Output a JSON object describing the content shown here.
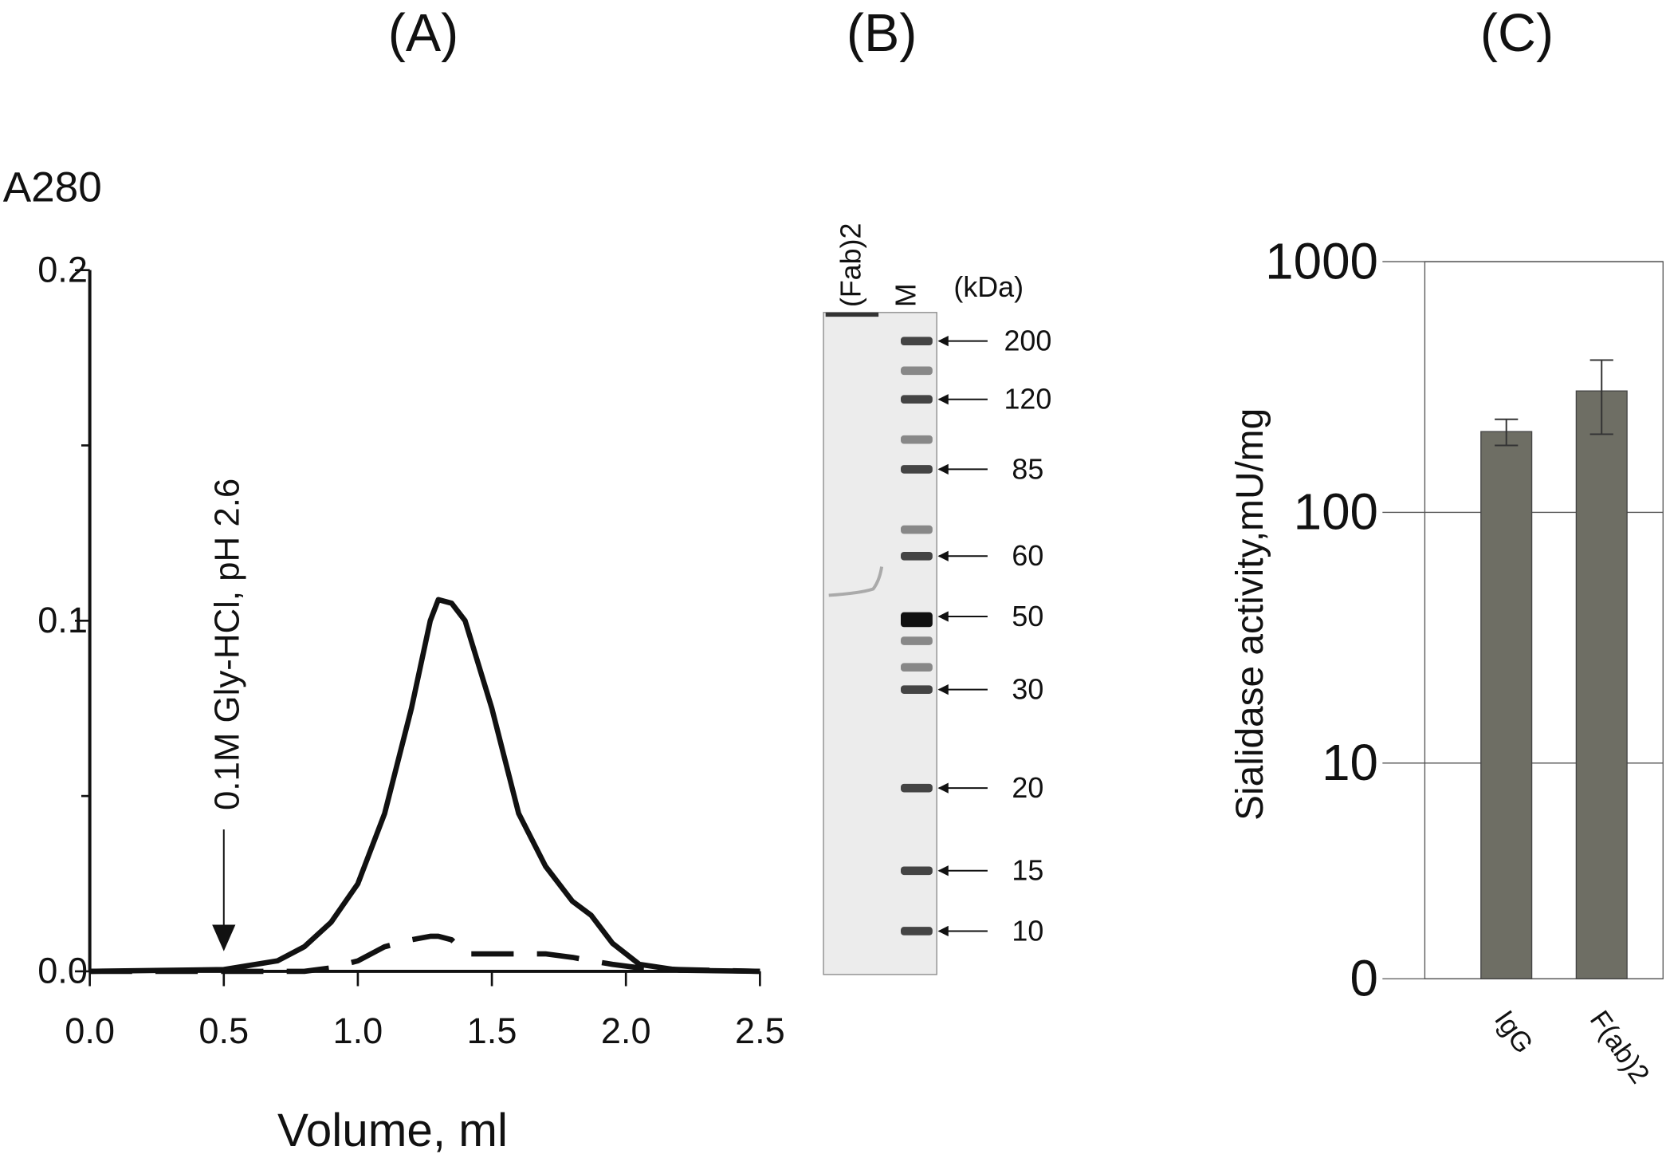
{
  "chart_data": [
    {
      "type": "line",
      "panel": "(A)",
      "ylabel": "A280",
      "xlabel": "Volume, ml",
      "x": [
        0,
        0.5,
        0.7,
        0.8,
        0.9,
        1.0,
        1.1,
        1.2,
        1.27,
        1.3,
        1.35,
        1.4,
        1.5,
        1.6,
        1.7,
        1.8,
        1.87,
        1.95,
        2.05,
        2.2,
        2.5
      ],
      "series": [
        {
          "color": "#111111",
          "style": "solid",
          "values": [
            0,
            0.0005,
            0.003,
            0.007,
            0.014,
            0.025,
            0.045,
            0.075,
            0.1,
            0.106,
            0.105,
            0.1,
            0.075,
            0.045,
            0.03,
            0.02,
            0.016,
            0.008,
            0.002,
            0.0003,
            0
          ]
        },
        {
          "color": "#111111",
          "style": "dashed",
          "values": [
            0,
            0,
            0,
            0,
            0.001,
            0.003,
            0.007,
            0.009,
            0.01,
            0.01,
            0.009,
            0.005,
            0.005,
            0.005,
            0.005,
            0.004,
            0.003,
            0.002,
            0.001,
            0.0005,
            0
          ]
        }
      ],
      "xlim": [
        0,
        2.5
      ],
      "xticks": [
        {
          "value": 0,
          "label": "0.0"
        },
        0.5,
        {
          "value": 1,
          "label": "1.0"
        },
        1.5,
        {
          "value": 2,
          "label": "2.0"
        },
        2.5
      ],
      "ylim": [
        0,
        0.2
      ],
      "yticks": [
        {
          "value": 0,
          "label": "0.0"
        },
        0.1,
        0.2
      ],
      "yminor": [
        0.05,
        0.15
      ],
      "annotations": [
        {
          "text": "0.1M Gly-HCl, pH 2.6",
          "x": 0.5
        }
      ]
    },
    {
      "type": "bar",
      "panel": "(C)",
      "ylabel": "Sialidase activity,mU/mg",
      "categories": [
        "IgG",
        "F(ab)2"
      ],
      "values": [
        210,
        305
      ],
      "errors": [
        25,
        100
      ],
      "color": "#6e6e64",
      "log_scale": true,
      "ylim": [
        0,
        1000
      ],
      "yticks": [
        1000,
        100,
        10,
        0
      ],
      "grid": true
    }
  ],
  "gel": {
    "panel": "(B)",
    "lanes": [
      "(Fab)2",
      "M"
    ],
    "unit": "(kDa)",
    "markers": [
      200,
      120,
      85,
      60,
      50,
      30,
      20,
      15,
      10
    ]
  }
}
